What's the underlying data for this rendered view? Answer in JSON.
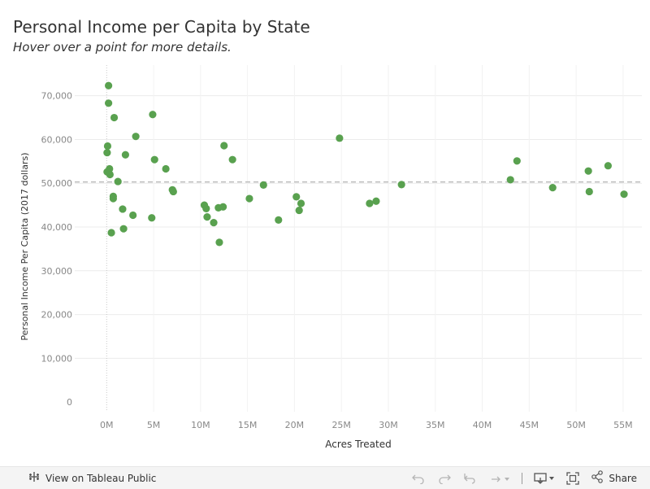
{
  "header": {
    "title": "Personal Income per Capita by State",
    "subtitle": "Hover over a point for more details."
  },
  "chart_data": {
    "type": "scatter",
    "xlabel": "Acres Treated",
    "ylabel": "Personal Income Per Capita (2017 dollars)",
    "xlim": [
      -3.4,
      57
    ],
    "ylim": [
      -2200,
      77000
    ],
    "x_ticks": [
      0,
      5,
      10,
      15,
      20,
      25,
      30,
      35,
      40,
      45,
      50,
      55
    ],
    "x_tick_labels": [
      "0M",
      "5M",
      "10M",
      "15M",
      "20M",
      "25M",
      "30M",
      "35M",
      "40M",
      "45M",
      "50M",
      "55M"
    ],
    "y_ticks": [
      0,
      10000,
      20000,
      30000,
      40000,
      50000,
      60000,
      70000
    ],
    "y_tick_labels": [
      "0",
      "10,000",
      "20,000",
      "30,000",
      "40,000",
      "50,000",
      "60,000",
      "70,000"
    ],
    "reference_line_y": 50300,
    "grid": true,
    "point_color": "#59a14f",
    "series": [
      {
        "points": [
          [
            0.2,
            72300
          ],
          [
            0.2,
            68300
          ],
          [
            0.8,
            65000
          ],
          [
            0.1,
            58500
          ],
          [
            0.05,
            57000
          ],
          [
            0.3,
            53300
          ],
          [
            0.05,
            52600
          ],
          [
            0.35,
            52000
          ],
          [
            1.2,
            50400
          ],
          [
            0.7,
            47000
          ],
          [
            0.7,
            46500
          ],
          [
            0.5,
            38700
          ],
          [
            1.7,
            44100
          ],
          [
            2.0,
            56500
          ],
          [
            1.8,
            39600
          ],
          [
            2.8,
            42700
          ],
          [
            3.1,
            60700
          ],
          [
            4.9,
            65700
          ],
          [
            5.1,
            55400
          ],
          [
            4.8,
            42100
          ],
          [
            6.3,
            53300
          ],
          [
            7.0,
            48500
          ],
          [
            7.1,
            48100
          ],
          [
            10.4,
            45000
          ],
          [
            10.6,
            44200
          ],
          [
            10.7,
            42300
          ],
          [
            11.4,
            41000
          ],
          [
            11.9,
            44400
          ],
          [
            12.4,
            44600
          ],
          [
            12.5,
            58600
          ],
          [
            12.0,
            36500
          ],
          [
            13.4,
            55400
          ],
          [
            15.2,
            46500
          ],
          [
            16.7,
            49600
          ],
          [
            18.3,
            41600
          ],
          [
            20.2,
            46900
          ],
          [
            20.5,
            43800
          ],
          [
            20.7,
            45400
          ],
          [
            24.8,
            60300
          ],
          [
            28.0,
            45400
          ],
          [
            28.7,
            45900
          ],
          [
            31.4,
            49700
          ],
          [
            43.0,
            50800
          ],
          [
            43.7,
            55100
          ],
          [
            47.5,
            49000
          ],
          [
            51.3,
            52800
          ],
          [
            51.4,
            48100
          ],
          [
            53.4,
            54000
          ],
          [
            55.1,
            47500
          ]
        ]
      }
    ]
  },
  "footer": {
    "view_link": "View on Tableau Public",
    "share_label": "Share"
  }
}
